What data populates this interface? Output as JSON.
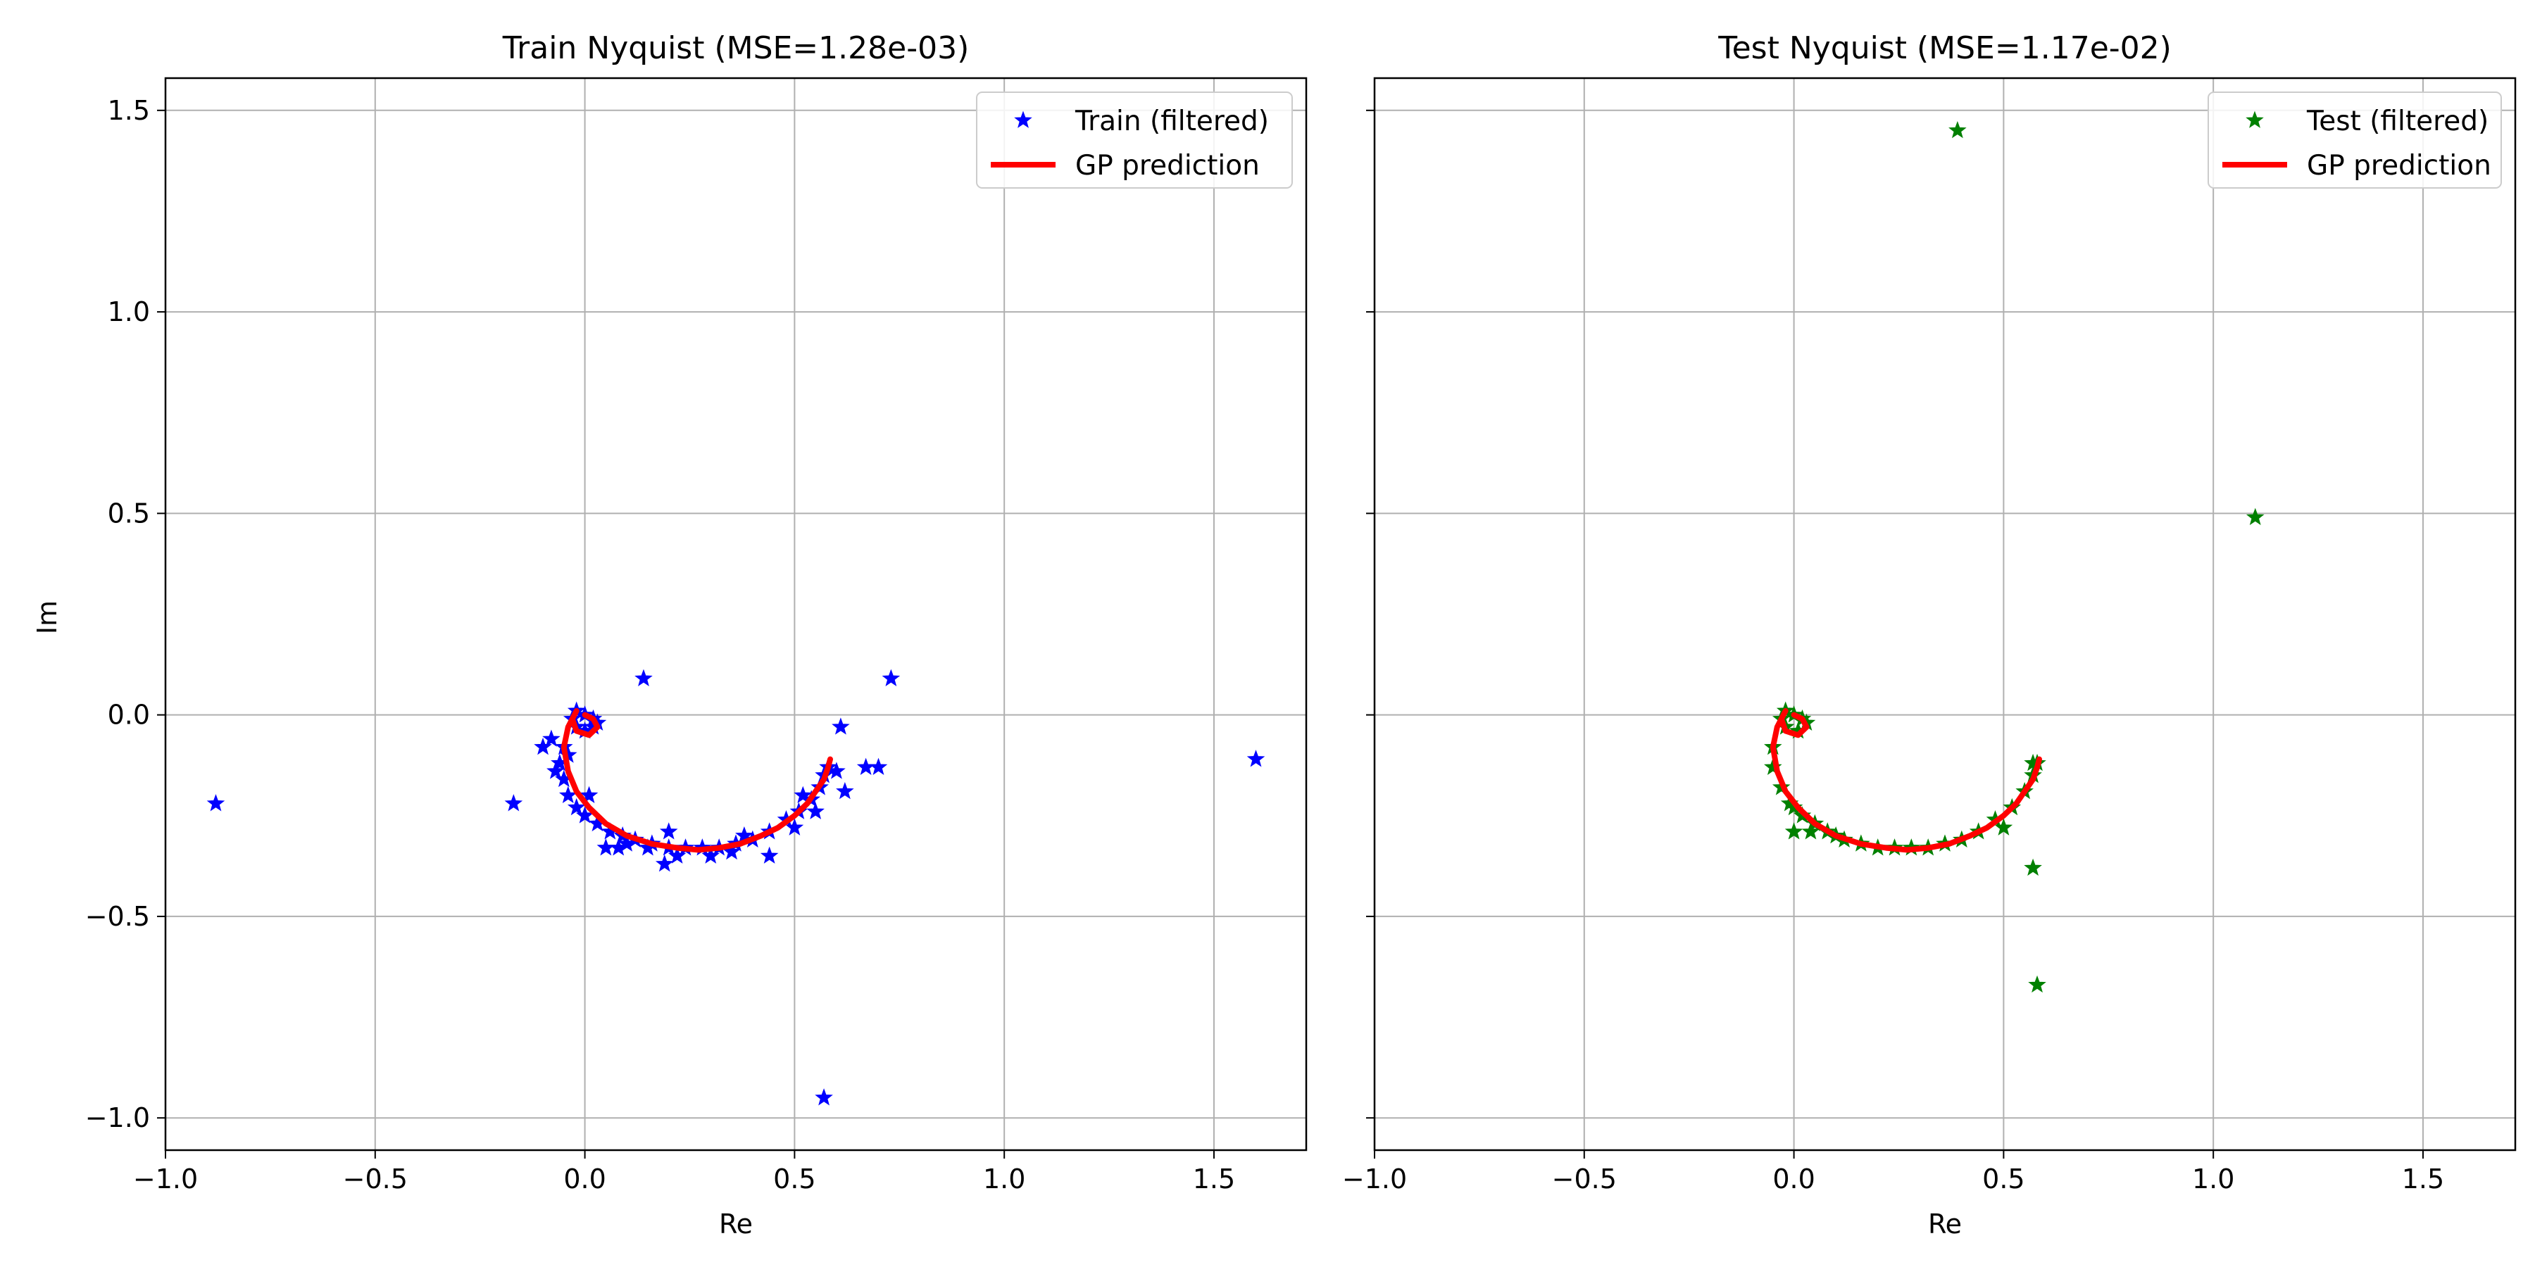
{
  "figure": {
    "background": "#ffffff"
  },
  "chart_data": [
    {
      "type": "scatter",
      "title": "Train Nyquist (MSE=1.28e-03)",
      "xlabel": "Re",
      "ylabel": "Im",
      "xlim": [
        -1.0,
        1.72
      ],
      "ylim": [
        -1.08,
        1.58
      ],
      "xticks": [
        -1.0,
        -0.5,
        0.0,
        0.5,
        1.0,
        1.5
      ],
      "xtick_labels": [
        "−1.0",
        "−0.5",
        "0.0",
        "0.5",
        "1.0",
        "1.5"
      ],
      "yticks": [
        -1.0,
        -0.5,
        0.0,
        0.5,
        1.0,
        1.5
      ],
      "ytick_labels": [
        "−1.0",
        "−0.5",
        "0.0",
        "0.5",
        "1.0",
        "1.5"
      ],
      "grid": true,
      "legend_position": "top-right",
      "series": [
        {
          "name": "Train (filtered)",
          "kind": "markers",
          "marker": "star",
          "color": "#0000ff",
          "points": [
            [
              0.0,
              0.0
            ],
            [
              0.02,
              -0.01
            ],
            [
              0.03,
              -0.02
            ],
            [
              0.02,
              -0.03
            ],
            [
              0.0,
              -0.04
            ],
            [
              -0.02,
              -0.03
            ],
            [
              -0.03,
              -0.01
            ],
            [
              -0.02,
              0.01
            ],
            [
              -0.05,
              -0.08
            ],
            [
              -0.06,
              -0.12
            ],
            [
              -0.05,
              -0.16
            ],
            [
              -0.04,
              -0.2
            ],
            [
              -0.02,
              -0.23
            ],
            [
              0.0,
              -0.25
            ],
            [
              0.03,
              -0.27
            ],
            [
              0.06,
              -0.29
            ],
            [
              0.09,
              -0.3
            ],
            [
              0.12,
              -0.31
            ],
            [
              0.16,
              -0.32
            ],
            [
              0.2,
              -0.33
            ],
            [
              0.24,
              -0.33
            ],
            [
              0.28,
              -0.33
            ],
            [
              0.32,
              -0.33
            ],
            [
              0.36,
              -0.32
            ],
            [
              0.4,
              -0.31
            ],
            [
              0.44,
              -0.29
            ],
            [
              0.48,
              -0.26
            ],
            [
              0.51,
              -0.24
            ],
            [
              0.54,
              -0.21
            ],
            [
              0.56,
              -0.18
            ],
            [
              0.57,
              -0.15
            ],
            [
              0.58,
              -0.13
            ],
            [
              -0.08,
              -0.06
            ],
            [
              -0.1,
              -0.08
            ],
            [
              -0.04,
              -0.1
            ],
            [
              -0.07,
              -0.14
            ],
            [
              0.01,
              -0.2
            ],
            [
              0.05,
              -0.33
            ],
            [
              0.08,
              -0.33
            ],
            [
              0.15,
              -0.33
            ],
            [
              0.19,
              -0.37
            ],
            [
              0.22,
              -0.35
            ],
            [
              0.3,
              -0.35
            ],
            [
              0.35,
              -0.34
            ],
            [
              0.44,
              -0.35
            ],
            [
              0.5,
              -0.28
            ],
            [
              0.52,
              -0.2
            ],
            [
              0.55,
              -0.24
            ],
            [
              0.6,
              -0.14
            ],
            [
              0.62,
              -0.19
            ],
            [
              0.67,
              -0.13
            ],
            [
              0.7,
              -0.13
            ],
            [
              0.61,
              -0.03
            ],
            [
              0.73,
              0.09
            ],
            [
              0.14,
              0.09
            ],
            [
              -0.17,
              -0.22
            ],
            [
              -0.88,
              -0.22
            ],
            [
              1.6,
              -0.11
            ],
            [
              0.57,
              -0.95
            ],
            [
              0.2,
              -0.29
            ],
            [
              0.1,
              -0.32
            ],
            [
              0.38,
              -0.3
            ]
          ]
        },
        {
          "name": "GP prediction",
          "kind": "line",
          "color": "#ff0000",
          "points": [
            [
              0.0,
              -0.0
            ],
            [
              0.02,
              -0.01
            ],
            [
              0.03,
              -0.03
            ],
            [
              0.01,
              -0.05
            ],
            [
              -0.02,
              -0.04
            ],
            [
              -0.03,
              -0.01
            ],
            [
              -0.02,
              0.01
            ],
            [
              -0.04,
              -0.03
            ],
            [
              -0.05,
              -0.08
            ],
            [
              -0.04,
              -0.14
            ],
            [
              -0.02,
              -0.19
            ],
            [
              0.01,
              -0.23
            ],
            [
              0.05,
              -0.27
            ],
            [
              0.1,
              -0.3
            ],
            [
              0.16,
              -0.32
            ],
            [
              0.22,
              -0.33
            ],
            [
              0.27,
              -0.335
            ],
            [
              0.32,
              -0.33
            ],
            [
              0.37,
              -0.32
            ],
            [
              0.42,
              -0.3
            ],
            [
              0.46,
              -0.28
            ],
            [
              0.5,
              -0.25
            ],
            [
              0.53,
              -0.22
            ],
            [
              0.55,
              -0.19
            ],
            [
              0.57,
              -0.16
            ],
            [
              0.58,
              -0.13
            ],
            [
              0.585,
              -0.11
            ]
          ]
        }
      ]
    },
    {
      "type": "scatter",
      "title": "Test Nyquist (MSE=1.17e-02)",
      "xlabel": "Re",
      "xlim": [
        -1.0,
        1.72
      ],
      "ylim": [
        -1.08,
        1.58
      ],
      "xticks": [
        -1.0,
        -0.5,
        0.0,
        0.5,
        1.0,
        1.5
      ],
      "xtick_labels": [
        "−1.0",
        "−0.5",
        "0.0",
        "0.5",
        "1.0",
        "1.5"
      ],
      "yticks": [
        -1.0,
        -0.5,
        0.0,
        0.5,
        1.0,
        1.5
      ],
      "grid": true,
      "legend_position": "top-right",
      "series": [
        {
          "name": "Test (filtered)",
          "kind": "markers",
          "marker": "star",
          "color": "#008000",
          "points": [
            [
              0.0,
              0.0
            ],
            [
              0.02,
              -0.01
            ],
            [
              0.03,
              -0.02
            ],
            [
              0.01,
              -0.04
            ],
            [
              -0.02,
              -0.03
            ],
            [
              -0.03,
              -0.01
            ],
            [
              -0.02,
              0.01
            ],
            [
              -0.05,
              -0.08
            ],
            [
              -0.05,
              -0.13
            ],
            [
              -0.03,
              -0.18
            ],
            [
              -0.01,
              -0.22
            ],
            [
              0.02,
              -0.25
            ],
            [
              0.05,
              -0.27
            ],
            [
              0.08,
              -0.29
            ],
            [
              0.12,
              -0.31
            ],
            [
              0.16,
              -0.32
            ],
            [
              0.2,
              -0.33
            ],
            [
              0.24,
              -0.33
            ],
            [
              0.28,
              -0.33
            ],
            [
              0.32,
              -0.33
            ],
            [
              0.36,
              -0.32
            ],
            [
              0.4,
              -0.31
            ],
            [
              0.44,
              -0.29
            ],
            [
              0.48,
              -0.26
            ],
            [
              0.52,
              -0.23
            ],
            [
              0.55,
              -0.19
            ],
            [
              0.57,
              -0.15
            ],
            [
              0.58,
              -0.12
            ],
            [
              0.0,
              -0.29
            ],
            [
              0.04,
              -0.29
            ],
            [
              0.1,
              -0.3
            ],
            [
              0.0,
              -0.23
            ],
            [
              0.5,
              -0.28
            ],
            [
              0.57,
              -0.12
            ],
            [
              0.39,
              1.45
            ],
            [
              1.1,
              0.49
            ],
            [
              0.57,
              -0.38
            ],
            [
              0.58,
              -0.67
            ]
          ]
        },
        {
          "name": "GP prediction",
          "kind": "line",
          "color": "#ff0000",
          "points": [
            [
              0.0,
              -0.0
            ],
            [
              0.02,
              -0.01
            ],
            [
              0.03,
              -0.03
            ],
            [
              0.01,
              -0.05
            ],
            [
              -0.02,
              -0.04
            ],
            [
              -0.03,
              -0.01
            ],
            [
              -0.02,
              0.01
            ],
            [
              -0.04,
              -0.03
            ],
            [
              -0.05,
              -0.08
            ],
            [
              -0.04,
              -0.14
            ],
            [
              -0.02,
              -0.19
            ],
            [
              0.01,
              -0.23
            ],
            [
              0.05,
              -0.27
            ],
            [
              0.1,
              -0.3
            ],
            [
              0.16,
              -0.32
            ],
            [
              0.22,
              -0.33
            ],
            [
              0.27,
              -0.335
            ],
            [
              0.32,
              -0.33
            ],
            [
              0.37,
              -0.32
            ],
            [
              0.42,
              -0.3
            ],
            [
              0.46,
              -0.28
            ],
            [
              0.5,
              -0.25
            ],
            [
              0.53,
              -0.22
            ],
            [
              0.55,
              -0.19
            ],
            [
              0.57,
              -0.16
            ],
            [
              0.58,
              -0.13
            ],
            [
              0.585,
              -0.11
            ]
          ]
        }
      ]
    }
  ]
}
